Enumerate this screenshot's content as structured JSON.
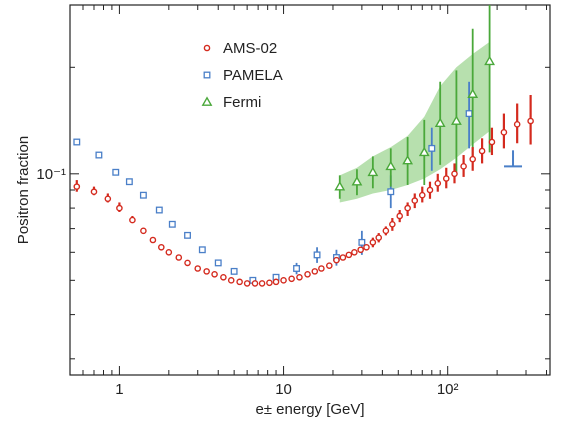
{
  "chart_data": {
    "type": "scatter",
    "title": "",
    "xlabel": "e± energy [GeV]",
    "ylabel": "Positron fraction",
    "x_scale": "log",
    "y_scale": "log",
    "xlim": [
      0.5,
      420
    ],
    "ylim": [
      0.027,
      0.3
    ],
    "x_ticks": [
      {
        "value": 1,
        "label": "1"
      },
      {
        "value": 10,
        "label": "10"
      },
      {
        "value": 100,
        "label": "10²"
      }
    ],
    "y_ticks": [
      {
        "value": 0.1,
        "label": "10⁻¹"
      }
    ],
    "grid": false,
    "legend_position": "top-left",
    "series": [
      {
        "name": "AMS-02",
        "marker": "circle",
        "color": "#d42a1e",
        "points": [
          {
            "x": 0.55,
            "y": 0.092,
            "lo": 0.089,
            "hi": 0.096
          },
          {
            "x": 0.7,
            "y": 0.089,
            "lo": 0.087,
            "hi": 0.092
          },
          {
            "x": 0.85,
            "y": 0.085,
            "lo": 0.083,
            "hi": 0.088
          },
          {
            "x": 1.0,
            "y": 0.08,
            "lo": 0.078,
            "hi": 0.083
          },
          {
            "x": 1.2,
            "y": 0.074,
            "lo": 0.073,
            "hi": 0.076
          },
          {
            "x": 1.4,
            "y": 0.069,
            "lo": 0.068,
            "hi": 0.07
          },
          {
            "x": 1.6,
            "y": 0.065,
            "lo": 0.064,
            "hi": 0.066
          },
          {
            "x": 1.8,
            "y": 0.062,
            "lo": 0.061,
            "hi": 0.063
          },
          {
            "x": 2.0,
            "y": 0.06
          },
          {
            "x": 2.3,
            "y": 0.058
          },
          {
            "x": 2.6,
            "y": 0.056
          },
          {
            "x": 3.0,
            "y": 0.054
          },
          {
            "x": 3.4,
            "y": 0.053
          },
          {
            "x": 3.8,
            "y": 0.052
          },
          {
            "x": 4.3,
            "y": 0.051
          },
          {
            "x": 4.8,
            "y": 0.05
          },
          {
            "x": 5.4,
            "y": 0.0495
          },
          {
            "x": 6.0,
            "y": 0.049
          },
          {
            "x": 6.7,
            "y": 0.049
          },
          {
            "x": 7.4,
            "y": 0.049
          },
          {
            "x": 8.2,
            "y": 0.0492
          },
          {
            "x": 9.0,
            "y": 0.0495
          },
          {
            "x": 10.0,
            "y": 0.05
          },
          {
            "x": 11.2,
            "y": 0.0505
          },
          {
            "x": 12.5,
            "y": 0.051
          },
          {
            "x": 14.0,
            "y": 0.052
          },
          {
            "x": 15.5,
            "y": 0.053
          },
          {
            "x": 17.0,
            "y": 0.054
          },
          {
            "x": 19.0,
            "y": 0.055
          },
          {
            "x": 21.0,
            "y": 0.057
          },
          {
            "x": 23.0,
            "y": 0.058
          },
          {
            "x": 25.0,
            "y": 0.059
          },
          {
            "x": 27.0,
            "y": 0.06
          },
          {
            "x": 29.5,
            "y": 0.061
          },
          {
            "x": 32.0,
            "y": 0.062
          },
          {
            "x": 35.0,
            "y": 0.064,
            "lo": 0.062,
            "hi": 0.066
          },
          {
            "x": 38.0,
            "y": 0.066,
            "lo": 0.064,
            "hi": 0.068
          },
          {
            "x": 42.0,
            "y": 0.069,
            "lo": 0.067,
            "hi": 0.071
          },
          {
            "x": 46.0,
            "y": 0.072,
            "lo": 0.069,
            "hi": 0.075
          },
          {
            "x": 51.0,
            "y": 0.076,
            "lo": 0.073,
            "hi": 0.079
          },
          {
            "x": 57.0,
            "y": 0.08,
            "lo": 0.076,
            "hi": 0.083
          },
          {
            "x": 63.0,
            "y": 0.084,
            "lo": 0.08,
            "hi": 0.088
          },
          {
            "x": 70.0,
            "y": 0.087,
            "lo": 0.083,
            "hi": 0.092
          },
          {
            "x": 78.0,
            "y": 0.09,
            "lo": 0.085,
            "hi": 0.095
          },
          {
            "x": 87.0,
            "y": 0.094,
            "lo": 0.089,
            "hi": 0.1
          },
          {
            "x": 98.0,
            "y": 0.097,
            "lo": 0.091,
            "hi": 0.104
          },
          {
            "x": 110.0,
            "y": 0.1,
            "lo": 0.094,
            "hi": 0.107
          },
          {
            "x": 125.0,
            "y": 0.105,
            "lo": 0.098,
            "hi": 0.113
          },
          {
            "x": 142.0,
            "y": 0.11,
            "lo": 0.102,
            "hi": 0.119
          },
          {
            "x": 162.0,
            "y": 0.116,
            "lo": 0.107,
            "hi": 0.126
          },
          {
            "x": 186.0,
            "y": 0.123,
            "lo": 0.113,
            "hi": 0.135
          },
          {
            "x": 220.0,
            "y": 0.131,
            "lo": 0.118,
            "hi": 0.148
          },
          {
            "x": 265.0,
            "y": 0.138,
            "lo": 0.122,
            "hi": 0.158
          },
          {
            "x": 320.0,
            "y": 0.141,
            "lo": 0.121,
            "hi": 0.167
          }
        ]
      },
      {
        "name": "PAMELA",
        "marker": "square",
        "color": "#4a7fc8",
        "points": [
          {
            "x": 0.55,
            "y": 0.123
          },
          {
            "x": 0.75,
            "y": 0.113
          },
          {
            "x": 0.95,
            "y": 0.101
          },
          {
            "x": 1.15,
            "y": 0.095
          },
          {
            "x": 1.4,
            "y": 0.087
          },
          {
            "x": 1.75,
            "y": 0.079
          },
          {
            "x": 2.1,
            "y": 0.072
          },
          {
            "x": 2.6,
            "y": 0.067
          },
          {
            "x": 3.2,
            "y": 0.061
          },
          {
            "x": 4.0,
            "y": 0.056
          },
          {
            "x": 5.0,
            "y": 0.053
          },
          {
            "x": 6.5,
            "y": 0.05
          },
          {
            "x": 9.0,
            "y": 0.051
          },
          {
            "x": 12.0,
            "y": 0.054,
            "lo": 0.052,
            "hi": 0.056
          },
          {
            "x": 16.0,
            "y": 0.059,
            "lo": 0.056,
            "hi": 0.062
          },
          {
            "x": 21.0,
            "y": 0.058,
            "lo": 0.055,
            "hi": 0.061
          },
          {
            "x": 30.0,
            "y": 0.064,
            "lo": 0.059,
            "hi": 0.069
          },
          {
            "x": 45.0,
            "y": 0.089,
            "lo": 0.08,
            "hi": 0.099
          },
          {
            "x": 80.0,
            "y": 0.118,
            "lo": 0.102,
            "hi": 0.135
          },
          {
            "x": 135.0,
            "y": 0.148,
            "lo": 0.118,
            "hi": 0.182
          }
        ]
      },
      {
        "name": "Fermi",
        "marker": "triangle",
        "color": "#4aa83a",
        "band_color": "#aadba0",
        "points": [
          {
            "x": 22.0,
            "y": 0.092,
            "lo": 0.085,
            "hi": 0.099
          },
          {
            "x": 28.0,
            "y": 0.095,
            "lo": 0.087,
            "hi": 0.103
          },
          {
            "x": 35.0,
            "y": 0.101,
            "lo": 0.091,
            "hi": 0.112
          },
          {
            "x": 45.0,
            "y": 0.105,
            "lo": 0.092,
            "hi": 0.118
          },
          {
            "x": 57.0,
            "y": 0.109,
            "lo": 0.093,
            "hi": 0.127
          },
          {
            "x": 72.0,
            "y": 0.115,
            "lo": 0.093,
            "hi": 0.142
          },
          {
            "x": 90.0,
            "y": 0.139,
            "lo": 0.106,
            "hi": 0.182
          },
          {
            "x": 113.0,
            "y": 0.141,
            "lo": 0.101,
            "hi": 0.196
          },
          {
            "x": 142.0,
            "y": 0.168,
            "lo": 0.11,
            "hi": 0.257
          },
          {
            "x": 180.0,
            "y": 0.208,
            "lo": 0.115,
            "hi": 0.3
          }
        ],
        "band": [
          {
            "x": 22.0,
            "lo": 0.083,
            "hi": 0.099
          },
          {
            "x": 28.0,
            "lo": 0.085,
            "hi": 0.104
          },
          {
            "x": 35.0,
            "lo": 0.088,
            "hi": 0.112
          },
          {
            "x": 45.0,
            "lo": 0.09,
            "hi": 0.119
          },
          {
            "x": 57.0,
            "lo": 0.093,
            "hi": 0.128
          },
          {
            "x": 72.0,
            "lo": 0.097,
            "hi": 0.145
          },
          {
            "x": 90.0,
            "lo": 0.103,
            "hi": 0.177
          },
          {
            "x": 113.0,
            "lo": 0.111,
            "hi": 0.2
          },
          {
            "x": 142.0,
            "lo": 0.121,
            "hi": 0.218
          },
          {
            "x": 180.0,
            "lo": 0.132,
            "hi": 0.236
          }
        ]
      }
    ],
    "annotations": [
      {
        "type": "upper-limit-marker",
        "x": 250,
        "y": 0.105,
        "color": "#4a7fc8"
      }
    ]
  }
}
